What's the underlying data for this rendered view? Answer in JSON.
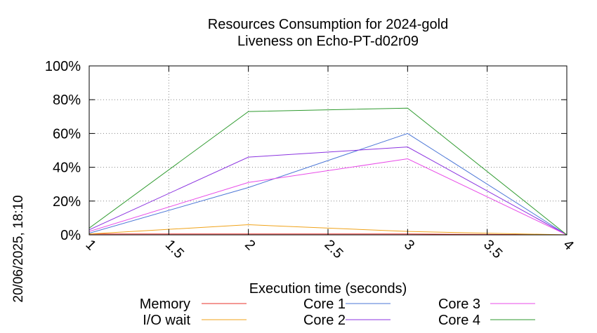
{
  "chart_data": {
    "type": "line",
    "title": "Resources Consumption for 2024-gold",
    "subtitle": "Liveness on Echo-PT-d02r09",
    "xlabel": "Execution time (seconds)",
    "ylabel": "",
    "side_label": "20/06/2025, 18:10",
    "xlim": [
      1,
      4
    ],
    "ylim": [
      0,
      100
    ],
    "grid": true,
    "legend_position": "bottom",
    "x_ticks": [
      "1",
      "1.5",
      "2",
      "2.5",
      "3",
      "3.5",
      "4"
    ],
    "y_ticks": [
      "0%",
      "20%",
      "40%",
      "60%",
      "80%",
      "100%"
    ],
    "x": [
      1,
      2,
      3,
      4
    ],
    "series": [
      {
        "name": "Memory",
        "color": "#e8312b",
        "values": [
          0.5,
          0.5,
          0.5,
          0
        ]
      },
      {
        "name": "I/O wait",
        "color": "#f0a31a",
        "values": [
          0.5,
          6,
          2,
          0
        ]
      },
      {
        "name": "Core 1",
        "color": "#4b76d6",
        "values": [
          1,
          28,
          60,
          0
        ]
      },
      {
        "name": "Core 2",
        "color": "#8b33e0",
        "values": [
          3,
          46,
          52,
          0
        ]
      },
      {
        "name": "Core 3",
        "color": "#e84be8",
        "values": [
          2,
          31,
          45,
          0
        ]
      },
      {
        "name": "Core 4",
        "color": "#2e9a2e",
        "values": [
          4,
          73,
          75,
          0
        ]
      }
    ]
  }
}
